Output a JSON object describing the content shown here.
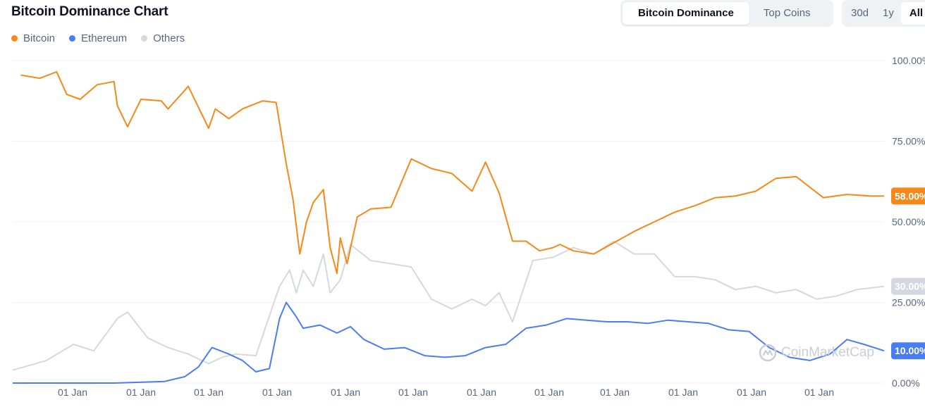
{
  "title": "Bitcoin Dominance Chart",
  "tabs": [
    {
      "label": "Bitcoin Dominance",
      "active": true
    },
    {
      "label": "Top Coins",
      "active": false
    }
  ],
  "ranges": [
    {
      "label": "30d",
      "active": false
    },
    {
      "label": "1y",
      "active": false
    },
    {
      "label": "All",
      "active": true
    }
  ],
  "legend": [
    {
      "label": "Bitcoin",
      "color": "#f68819"
    },
    {
      "label": "Ethereum",
      "color": "#4a7cf6"
    },
    {
      "label": "Others",
      "color": "#d5d8de"
    }
  ],
  "watermark": "CoinMarketCap",
  "chart_data": {
    "type": "line",
    "ylim": [
      0,
      100
    ],
    "yticks": [
      {
        "value": 100,
        "label": "100.00%"
      },
      {
        "value": 75,
        "label": "75.00%"
      },
      {
        "value": 50,
        "label": "50.00%"
      },
      {
        "value": 25,
        "label": "25.00%"
      },
      {
        "value": 0,
        "label": "0.00%"
      }
    ],
    "xticks": [
      {
        "x": 1,
        "label": "01 Jan"
      },
      {
        "x": 2,
        "label": "01 Jan"
      },
      {
        "x": 3,
        "label": "01 Jan"
      },
      {
        "x": 4,
        "label": "01 Jan"
      },
      {
        "x": 5,
        "label": "01 Jan"
      },
      {
        "x": 6,
        "label": "01 Jan"
      },
      {
        "x": 7,
        "label": "01 Jan"
      },
      {
        "x": 8,
        "label": "01 Jan"
      },
      {
        "x": 9,
        "label": "01 Jan"
      },
      {
        "x": 10,
        "label": "01 Jan"
      },
      {
        "x": 11,
        "label": "01 Jan"
      },
      {
        "x": 12,
        "label": "01 Jan"
      }
    ],
    "grid": true,
    "series": [
      {
        "name": "Bitcoin",
        "color": "#f68819",
        "last_label": "58.00%",
        "x": [
          0.12,
          0.4,
          0.65,
          0.8,
          1.0,
          1.25,
          1.5,
          1.55,
          1.7,
          1.9,
          2.2,
          2.3,
          2.6,
          2.9,
          3.0,
          3.2,
          3.4,
          3.7,
          3.9,
          4.05,
          4.15,
          4.25,
          4.35,
          4.45,
          4.6,
          4.7,
          4.8,
          4.85,
          4.95,
          5.1,
          5.3,
          5.6,
          5.9,
          6.2,
          6.5,
          6.8,
          7.0,
          7.2,
          7.4,
          7.6,
          7.8,
          8.0,
          8.1,
          8.3,
          8.6,
          8.9,
          9.2,
          9.5,
          9.8,
          10.1,
          10.4,
          10.7,
          11.0,
          11.3,
          11.6,
          12.0,
          12.35,
          12.7,
          12.9
        ],
        "values": [
          95.5,
          94.5,
          96.5,
          89.5,
          88.0,
          92.5,
          93.5,
          86.0,
          79.5,
          88.0,
          87.5,
          85.0,
          92.0,
          79.0,
          85.0,
          82.0,
          85.0,
          87.5,
          87.0,
          68.0,
          57.0,
          40.0,
          50.0,
          56.0,
          60.0,
          42.0,
          34.0,
          45.0,
          37.0,
          51.5,
          54.0,
          54.5,
          69.5,
          66.5,
          65.0,
          59.5,
          68.5,
          59.0,
          44.0,
          44.0,
          41.0,
          42.0,
          43.0,
          41.0,
          40.0,
          43.5,
          47.0,
          50.0,
          53.0,
          55.0,
          57.5,
          58.0,
          59.5,
          63.5,
          64.0,
          57.5,
          58.5,
          58.0,
          58.0
        ]
      },
      {
        "name": "Ethereum",
        "color": "#4a7cf6",
        "last_label": "10.00%",
        "x": [
          0.0,
          1.5,
          2.25,
          2.55,
          2.75,
          2.95,
          3.2,
          3.4,
          3.6,
          3.8,
          3.95,
          4.05,
          4.2,
          4.3,
          4.55,
          4.8,
          5.0,
          5.2,
          5.5,
          5.8,
          6.1,
          6.4,
          6.7,
          7.0,
          7.3,
          7.6,
          7.9,
          8.2,
          8.5,
          8.8,
          9.1,
          9.4,
          9.7,
          10.0,
          10.3,
          10.6,
          10.9,
          11.2,
          11.5,
          11.8,
          12.1,
          12.35,
          12.6,
          12.9
        ],
        "values": [
          0.0,
          0.0,
          0.5,
          2.0,
          5.0,
          11.0,
          9.0,
          7.0,
          3.5,
          4.5,
          20.0,
          25.0,
          20.5,
          17.0,
          18.0,
          15.5,
          17.5,
          13.5,
          10.5,
          11.0,
          8.5,
          8.0,
          8.5,
          11.0,
          12.0,
          17.0,
          18.0,
          20.0,
          19.5,
          19.0,
          19.0,
          18.5,
          19.5,
          19.0,
          18.5,
          16.5,
          16.0,
          11.0,
          8.0,
          7.0,
          9.0,
          13.5,
          12.0,
          10.0
        ]
      },
      {
        "name": "Others",
        "color": "#d5d8de",
        "last_label": "30.00%",
        "x": [
          0.0,
          0.5,
          0.9,
          1.2,
          1.55,
          1.7,
          2.0,
          2.3,
          2.6,
          2.9,
          3.1,
          3.3,
          3.6,
          3.95,
          4.1,
          4.2,
          4.3,
          4.45,
          4.6,
          4.7,
          4.85,
          5.0,
          5.3,
          5.6,
          5.9,
          6.2,
          6.5,
          6.8,
          7.0,
          7.2,
          7.4,
          7.7,
          8.0,
          8.3,
          8.6,
          8.9,
          9.2,
          9.5,
          9.8,
          10.1,
          10.4,
          10.7,
          11.0,
          11.3,
          11.6,
          11.9,
          12.2,
          12.5,
          12.9
        ],
        "values": [
          4.0,
          7.0,
          12.0,
          10.0,
          20.0,
          22.0,
          14.0,
          11.0,
          9.0,
          6.0,
          8.0,
          9.0,
          8.5,
          30.0,
          35.0,
          28.0,
          35.0,
          30.0,
          40.0,
          28.0,
          32.0,
          43.0,
          38.0,
          37.0,
          36.0,
          26.0,
          23.0,
          26.0,
          24.0,
          28.0,
          19.0,
          38.0,
          39.0,
          42.0,
          40.0,
          44.0,
          40.0,
          40.0,
          33.0,
          33.0,
          32.0,
          29.0,
          30.0,
          28.0,
          29.0,
          26.0,
          27.0,
          29.0,
          30.0
        ]
      }
    ]
  }
}
